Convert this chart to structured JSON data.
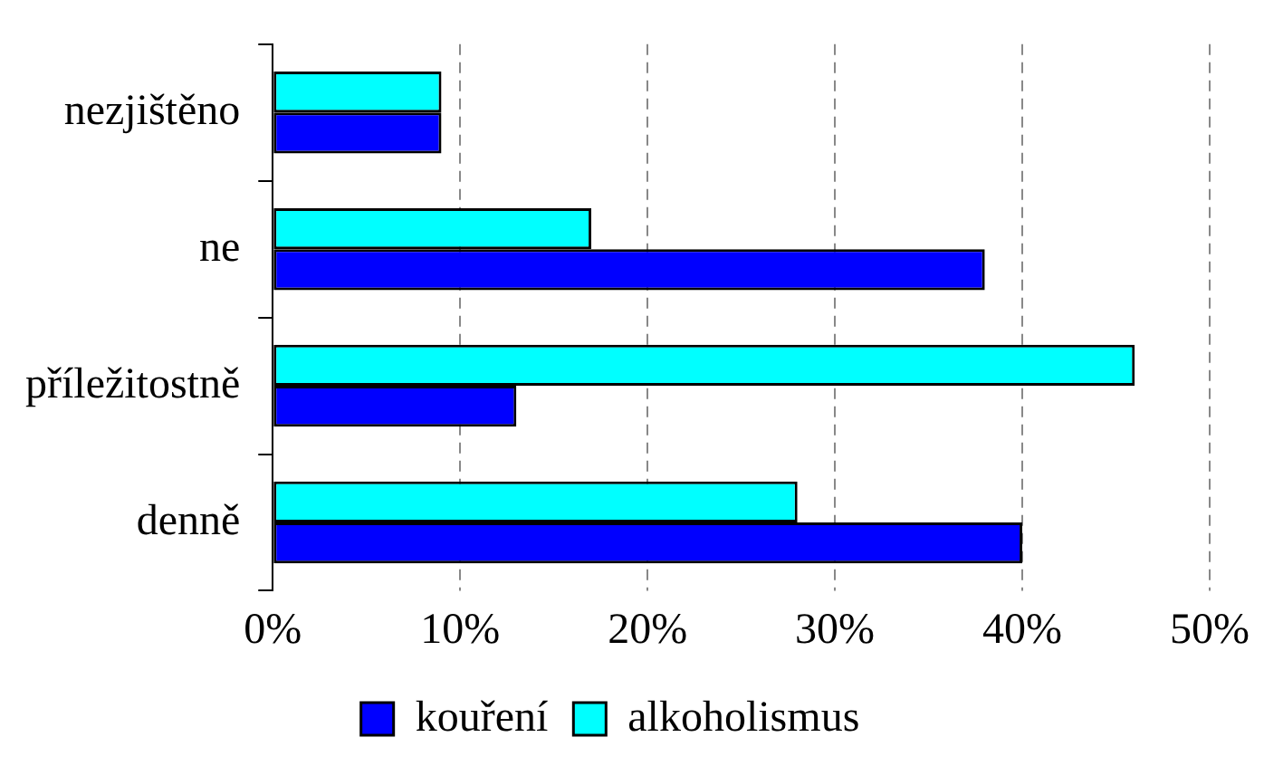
{
  "chart_data": {
    "type": "bar",
    "orientation": "horizontal",
    "categories": [
      "nezjištěno",
      "ne",
      "příležitostně",
      "denně"
    ],
    "series": [
      {
        "name": "kouření",
        "color": "#0000ff",
        "values": [
          9,
          38,
          13,
          40
        ]
      },
      {
        "name": "alkoholismus",
        "color": "#00ffff",
        "values": [
          9,
          17,
          46,
          28
        ]
      }
    ],
    "xlim": [
      0,
      50
    ],
    "xticks": [
      {
        "value": 0,
        "label": "0%"
      },
      {
        "value": 10,
        "label": "10%"
      },
      {
        "value": 20,
        "label": "20%"
      },
      {
        "value": 30,
        "label": "30%"
      },
      {
        "value": 40,
        "label": "40%"
      },
      {
        "value": 50,
        "label": "50%"
      }
    ],
    "grid": "x",
    "legend": "bottom"
  }
}
